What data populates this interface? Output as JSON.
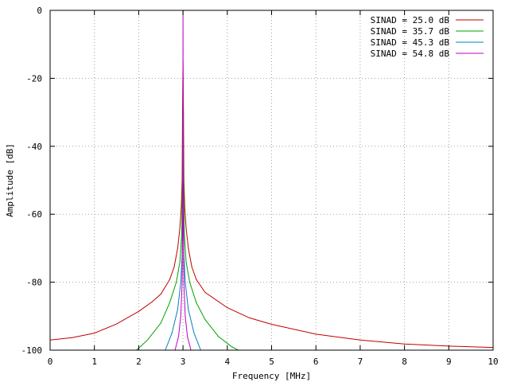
{
  "chart_data": {
    "type": "line",
    "title": "",
    "xlabel": "Frequency [MHz]",
    "ylabel": "Amplitude [dB]",
    "xlim": [
      0,
      10
    ],
    "ylim": [
      -100,
      0
    ],
    "xticks": [
      0,
      1,
      2,
      3,
      4,
      5,
      6,
      7,
      8,
      9,
      10
    ],
    "yticks": [
      0,
      -20,
      -40,
      -60,
      -80,
      -100
    ],
    "grid": true,
    "legend_position": "top-right",
    "signal_frequency_mhz": 3.0,
    "series": [
      {
        "name": "SINAD = 25.0 dB",
        "color": "#c00000",
        "x": [
          0.0,
          0.5,
          1.0,
          1.5,
          2.0,
          2.3,
          2.5,
          2.7,
          2.8,
          2.88,
          2.93,
          2.96,
          2.98,
          2.99,
          3.0,
          3.01,
          3.02,
          3.04,
          3.07,
          3.12,
          3.2,
          3.3,
          3.5,
          4.0,
          4.5,
          5.0,
          6.0,
          7.0,
          8.0,
          9.0,
          10.0
        ],
        "y": [
          -97.0,
          -96.3,
          -95.0,
          -92.3,
          -88.6,
          -85.8,
          -83.5,
          -79.2,
          -75.5,
          -70.0,
          -64.0,
          -58.0,
          -50.0,
          -30.0,
          -15.0,
          -30.0,
          -50.0,
          -58.0,
          -64.0,
          -70.0,
          -75.5,
          -79.2,
          -83.0,
          -87.5,
          -90.5,
          -92.4,
          -95.3,
          -97.0,
          -98.2,
          -98.8,
          -99.2
        ]
      },
      {
        "name": "SINAD = 35.7 dB",
        "color": "#00a000",
        "x": [
          1.95,
          2.2,
          2.5,
          2.7,
          2.85,
          2.93,
          2.97,
          2.99,
          3.0,
          3.01,
          3.03,
          3.07,
          3.15,
          3.3,
          3.5,
          3.8,
          4.1,
          4.25
        ],
        "y": [
          -100.0,
          -97.0,
          -92.0,
          -86.0,
          -80.0,
          -74.0,
          -66.0,
          -50.0,
          -20.0,
          -50.0,
          -66.0,
          -74.0,
          -80.0,
          -86.0,
          -91.0,
          -96.0,
          -99.0,
          -100.0
        ]
      },
      {
        "name": "SINAD = 45.3 dB",
        "color": "#0080c0",
        "x": [
          2.6,
          2.75,
          2.88,
          2.95,
          2.98,
          2.995,
          3.0,
          3.005,
          3.02,
          3.05,
          3.12,
          3.25,
          3.4
        ],
        "y": [
          -100.0,
          -95.0,
          -88.0,
          -80.0,
          -72.0,
          -55.0,
          -20.0,
          -55.0,
          -72.0,
          -80.0,
          -88.0,
          -95.0,
          -100.0
        ]
      },
      {
        "name": "SINAD = 54.8 dB",
        "color": "#c000c0",
        "x": [
          2.82,
          2.9,
          2.95,
          2.98,
          2.995,
          3.0,
          3.005,
          3.02,
          3.05,
          3.1,
          3.18
        ],
        "y": [
          -100.0,
          -96.0,
          -90.0,
          -80.0,
          -60.0,
          0.0,
          -60.0,
          -80.0,
          -90.0,
          -96.0,
          -100.0
        ]
      }
    ]
  }
}
